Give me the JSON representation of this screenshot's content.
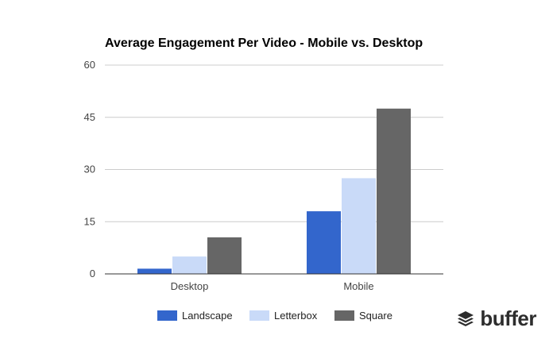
{
  "chart_data": {
    "type": "bar",
    "title": "Average Engagement Per Video - Mobile vs. Desktop",
    "categories": [
      "Desktop",
      "Mobile"
    ],
    "series": [
      {
        "name": "Landscape",
        "color": "#3366cc",
        "values": [
          1.5,
          18
        ]
      },
      {
        "name": "Letterbox",
        "color": "#c9daf8",
        "values": [
          5,
          27.5
        ]
      },
      {
        "name": "Square",
        "color": "#666666",
        "values": [
          10.5,
          47.5
        ]
      }
    ],
    "ylim": [
      0,
      60
    ],
    "yticks": [
      0,
      15,
      30,
      45,
      60
    ],
    "xlabel": "",
    "ylabel": "",
    "grid": true,
    "legend": "bottom"
  },
  "brand": {
    "name": "buffer",
    "icon": "buffer-logo-icon"
  }
}
